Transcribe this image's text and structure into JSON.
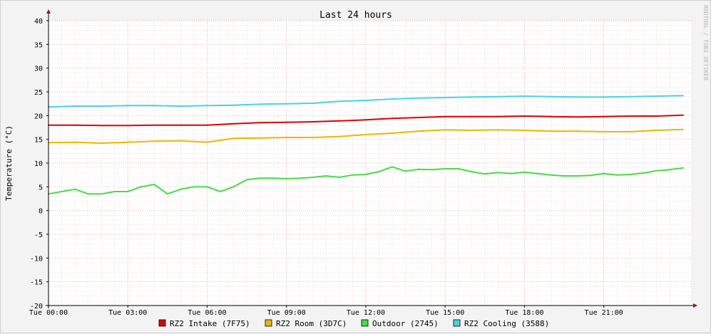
{
  "chart_data": {
    "type": "line",
    "title": "Last 24 hours",
    "ylabel": "Temperature (°C)",
    "xlabel": "",
    "watermark": "RRDTOOL / TOBI OETIKER",
    "ylim": [
      -20,
      40
    ],
    "yticks": [
      40,
      35,
      30,
      25,
      20,
      15,
      10,
      5,
      0,
      -5,
      -10,
      -15,
      -20
    ],
    "xlim": [
      0,
      24.3
    ],
    "xticks": [
      {
        "x": 0,
        "label": "Tue 00:00"
      },
      {
        "x": 3,
        "label": "Tue 03:00"
      },
      {
        "x": 6,
        "label": "Tue 06:00"
      },
      {
        "x": 9,
        "label": "Tue 09:00"
      },
      {
        "x": 12,
        "label": "Tue 12:00"
      },
      {
        "x": 15,
        "label": "Tue 15:00"
      },
      {
        "x": 18,
        "label": "Tue 18:00"
      },
      {
        "x": 21,
        "label": "Tue 21:00"
      }
    ],
    "grid": true,
    "legend_position": "bottom",
    "x_unit": "hours since Tue 00:00",
    "series": [
      {
        "name": "RZ2 Intake (7F75)",
        "color": "#e00000",
        "x": [
          0,
          1,
          2,
          3,
          4,
          5,
          6,
          7,
          8,
          9,
          10,
          11,
          12,
          13,
          14,
          15,
          16,
          17,
          18,
          19,
          20,
          21,
          22,
          23,
          24
        ],
        "values": [
          18.0,
          18.0,
          17.9,
          17.9,
          18.0,
          18.0,
          18.0,
          18.3,
          18.5,
          18.6,
          18.7,
          18.9,
          19.1,
          19.4,
          19.6,
          19.8,
          19.8,
          19.8,
          19.9,
          19.8,
          19.7,
          19.8,
          19.9,
          19.9,
          20.1
        ]
      },
      {
        "name": "RZ2 Room (3D7C)",
        "color": "#e8b800",
        "x": [
          0,
          1,
          2,
          3,
          4,
          5,
          6,
          7,
          8,
          9,
          10,
          11,
          12,
          13,
          14,
          15,
          16,
          17,
          18,
          19,
          20,
          21,
          22,
          23,
          24
        ],
        "values": [
          14.3,
          14.4,
          14.2,
          14.4,
          14.6,
          14.7,
          14.4,
          15.2,
          15.3,
          15.4,
          15.4,
          15.6,
          16.0,
          16.3,
          16.7,
          17.0,
          16.9,
          17.0,
          16.9,
          16.7,
          16.7,
          16.6,
          16.6,
          16.9,
          17.1
        ]
      },
      {
        "name": "Outdoor (2745)",
        "color": "#44dd44",
        "x": [
          0,
          0.5,
          1,
          1.5,
          2,
          2.5,
          3,
          3.5,
          4,
          4.5,
          5,
          5.5,
          6,
          6.5,
          7,
          7.5,
          8,
          8.5,
          9,
          9.5,
          10,
          10.5,
          11,
          11.5,
          12,
          12.5,
          13,
          13.5,
          14,
          14.5,
          15,
          15.5,
          16,
          16.5,
          17,
          17.5,
          18,
          18.5,
          19,
          19.5,
          20,
          20.5,
          21,
          21.5,
          22,
          22.5,
          23,
          23.5,
          24
        ],
        "values": [
          3.5,
          4.0,
          4.5,
          3.5,
          3.5,
          4.0,
          4.0,
          5.0,
          5.5,
          3.5,
          4.5,
          5.0,
          5.0,
          4.0,
          5.0,
          6.5,
          6.8,
          6.8,
          6.7,
          6.8,
          7.0,
          7.3,
          7.0,
          7.5,
          7.6,
          8.2,
          9.2,
          8.3,
          8.7,
          8.6,
          8.8,
          8.8,
          8.2,
          7.7,
          8.0,
          7.8,
          8.1,
          7.8,
          7.5,
          7.3,
          7.3,
          7.4,
          7.8,
          7.5,
          7.6,
          7.9,
          8.4,
          8.6,
          9.0
        ]
      },
      {
        "name": "RZ2 Cooling (3588)",
        "color": "#44d4e4",
        "x": [
          0,
          1,
          2,
          3,
          4,
          5,
          6,
          7,
          8,
          9,
          10,
          11,
          12,
          13,
          14,
          15,
          16,
          17,
          18,
          19,
          20,
          21,
          22,
          23,
          24
        ],
        "values": [
          21.8,
          22.0,
          22.0,
          22.1,
          22.1,
          22.0,
          22.1,
          22.2,
          22.4,
          22.5,
          22.6,
          23.0,
          23.2,
          23.5,
          23.7,
          23.8,
          23.9,
          24.0,
          24.1,
          24.0,
          23.9,
          23.9,
          24.0,
          24.1,
          24.2
        ]
      }
    ]
  }
}
